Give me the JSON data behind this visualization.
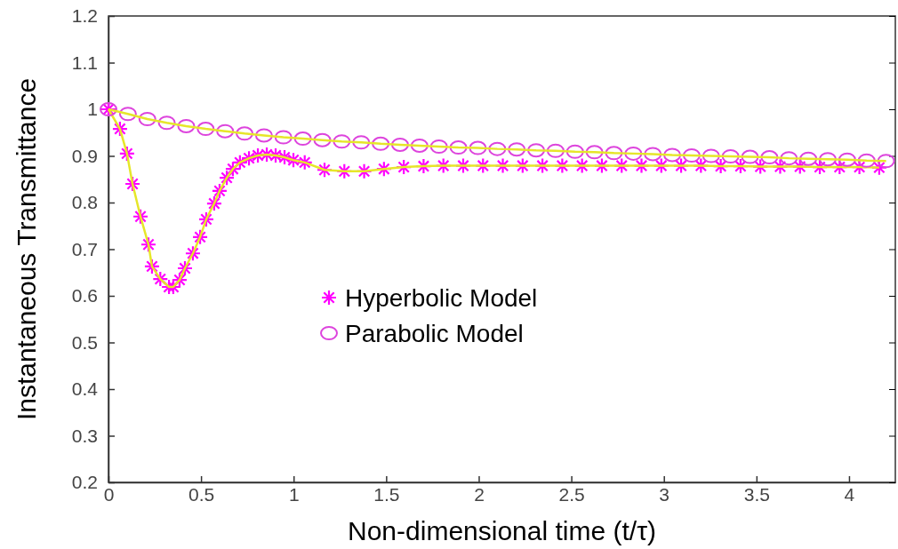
{
  "chart_data": {
    "type": "line",
    "xlabel": "Non-dimensional time (t/τ)",
    "ylabel": "Instantaneous Transmittance",
    "xlim": [
      0,
      4.25
    ],
    "xticks": [
      0,
      0.5,
      1,
      1.5,
      2,
      2.5,
      3,
      3.5,
      4
    ],
    "ylim": [
      0.2,
      1.2
    ],
    "yticks": [
      0.2,
      0.3,
      0.4,
      0.5,
      0.6,
      0.7,
      0.8,
      0.9,
      1,
      1.1,
      1.2
    ],
    "grid": false,
    "legend": "center",
    "line_style": "solid",
    "series": [
      {
        "name": "Hyperbolic Model",
        "color": "#ff00ff",
        "marker": "cross",
        "x": [
          0,
          0.062,
          0.1,
          0.13,
          0.173,
          0.216,
          0.235,
          0.28,
          0.327,
          0.35,
          0.384,
          0.413,
          0.456,
          0.495,
          0.528,
          0.571,
          0.6,
          0.639,
          0.672,
          0.71,
          0.759,
          0.807,
          0.855,
          0.903,
          0.951,
          0.999,
          1.06,
          1.167,
          1.274,
          1.381,
          1.488,
          1.595,
          1.702,
          1.809,
          1.916,
          2.023,
          2.13,
          2.237,
          2.344,
          2.451,
          2.558,
          2.665,
          2.772,
          2.879,
          2.986,
          3.093,
          3.2,
          3.307,
          3.414,
          3.521,
          3.628,
          3.735,
          3.842,
          3.949,
          4.056,
          4.163
        ],
        "values": [
          1.0,
          0.958,
          0.905,
          0.84,
          0.77,
          0.71,
          0.663,
          0.636,
          0.619,
          0.619,
          0.634,
          0.659,
          0.691,
          0.726,
          0.764,
          0.798,
          0.825,
          0.853,
          0.872,
          0.886,
          0.895,
          0.901,
          0.903,
          0.901,
          0.897,
          0.891,
          0.886,
          0.87,
          0.867,
          0.867,
          0.872,
          0.876,
          0.878,
          0.879,
          0.879,
          0.879,
          0.879,
          0.879,
          0.879,
          0.879,
          0.879,
          0.879,
          0.879,
          0.879,
          0.879,
          0.879,
          0.879,
          0.878,
          0.878,
          0.877,
          0.877,
          0.877,
          0.876,
          0.876,
          0.876,
          0.875
        ]
      },
      {
        "name": "Parabolic Model",
        "color": "#dd44dd",
        "marker": "circle",
        "x": [
          0,
          0.105,
          0.21,
          0.315,
          0.42,
          0.525,
          0.63,
          0.735,
          0.84,
          0.945,
          1.05,
          1.155,
          1.26,
          1.365,
          1.47,
          1.575,
          1.68,
          1.785,
          1.89,
          1.995,
          2.1,
          2.205,
          2.31,
          2.415,
          2.52,
          2.625,
          2.73,
          2.835,
          2.94,
          3.045,
          3.15,
          3.255,
          3.36,
          3.465,
          3.57,
          3.675,
          3.78,
          3.885,
          3.99,
          4.095,
          4.2
        ],
        "values": [
          1.0,
          0.99,
          0.979,
          0.971,
          0.964,
          0.958,
          0.953,
          0.948,
          0.944,
          0.94,
          0.937,
          0.934,
          0.931,
          0.929,
          0.926,
          0.924,
          0.922,
          0.92,
          0.918,
          0.917,
          0.915,
          0.914,
          0.912,
          0.911,
          0.909,
          0.908,
          0.906,
          0.905,
          0.904,
          0.902,
          0.901,
          0.9,
          0.899,
          0.898,
          0.897,
          0.895,
          0.894,
          0.893,
          0.892,
          0.89,
          0.889
        ]
      }
    ]
  }
}
